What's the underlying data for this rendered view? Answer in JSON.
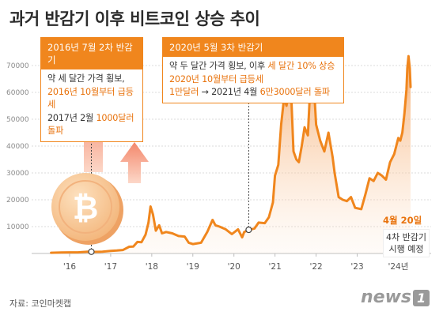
{
  "title": "과거 반감기 이후 비트코인 상승 추이",
  "source": "자료: 코인마켓캡",
  "logo": {
    "text": "news",
    "number": "1"
  },
  "annotation_2016": {
    "heading": "2016년 7월 2차 반감기",
    "line1": "약 세 달간 가격 횡보,",
    "line2": "2016년 10월부터 급등세",
    "line3_pre": "2017년 2월 ",
    "line3_hl": "1000달러 돌파"
  },
  "annotation_2020": {
    "heading": "2020년 5월 3차 반감기",
    "line1_pre": "약 두 달간 가격 횡보, 이후 ",
    "line1_hl": "세 달간 10% 상승",
    "line2": "2020년 10월부터 급등세",
    "line3_a": "1만달러",
    "line3_arrow": "→",
    "line3_b": "2021년 4월 ",
    "line3_c": "6만3000달러 돌파"
  },
  "note_2024": {
    "date": "4월 20일",
    "line1": "4차 반감기",
    "line2": "시행 예정"
  },
  "colors": {
    "line": "#f0861d",
    "accent": "#e8720c",
    "area_top": "#f6b27a",
    "grid": "#d0d0d0"
  },
  "icons": {
    "coin": "bitcoin-coin-icon",
    "arrows": "up-arrow-icon"
  },
  "chart_data": {
    "type": "area",
    "x_ticks": [
      "'16",
      "'17",
      "'18",
      "'19",
      "'20",
      "'21",
      "'22",
      "'23",
      "'24년"
    ],
    "y_ticks": [
      "10000",
      "20000",
      "30000",
      "40000",
      "50000",
      "60000",
      "70000"
    ],
    "xlim": [
      2015.5,
      2024.8
    ],
    "ylim": [
      0,
      75000
    ],
    "halving_markers": [
      {
        "date": "2016-07",
        "x": 2016.53,
        "y": 650
      },
      {
        "date": "2020-05",
        "x": 2020.36,
        "y": 8800
      }
    ],
    "series": [
      {
        "x": [
          2015.55,
          2015.8,
          2016.0,
          2016.2,
          2016.45,
          2016.6,
          2016.8,
          2017.0,
          2017.15,
          2017.3,
          2017.45,
          2017.55,
          2017.65,
          2017.75,
          2017.85,
          2017.92,
          2017.97,
          2018.03,
          2018.1,
          2018.18,
          2018.25,
          2018.35,
          2018.5,
          2018.65,
          2018.8,
          2018.9,
          2019.0,
          2019.2,
          2019.35,
          2019.48,
          2019.55,
          2019.65,
          2019.8,
          2019.95,
          2020.1,
          2020.2,
          2020.25,
          2020.36,
          2020.5,
          2020.6,
          2020.75,
          2020.85,
          2020.95,
          2021.0,
          2021.08,
          2021.15,
          2021.22,
          2021.28,
          2021.35,
          2021.4,
          2021.45,
          2021.52,
          2021.58,
          2021.65,
          2021.72,
          2021.8,
          2021.86,
          2021.93,
          2022.0,
          2022.1,
          2022.2,
          2022.3,
          2022.4,
          2022.45,
          2022.55,
          2022.65,
          2022.75,
          2022.85,
          2022.95,
          2023.1,
          2023.2,
          2023.3,
          2023.4,
          2023.5,
          2023.6,
          2023.7,
          2023.8,
          2023.9,
          2024.0,
          2024.05,
          2024.1,
          2024.15,
          2024.2,
          2024.22,
          2024.25,
          2024.28,
          2024.3
        ],
        "values": [
          250,
          350,
          400,
          420,
          650,
          600,
          650,
          950,
          1100,
          1300,
          2500,
          2600,
          4300,
          4200,
          7000,
          11500,
          17500,
          14500,
          8500,
          10500,
          7500,
          8000,
          7500,
          6500,
          6300,
          4000,
          3500,
          4000,
          8000,
          12500,
          10500,
          10000,
          9000,
          7200,
          9000,
          6000,
          8000,
          8800,
          9300,
          11500,
          11300,
          13500,
          19000,
          29000,
          33000,
          48000,
          58000,
          55000,
          63500,
          57000,
          38000,
          35000,
          34000,
          40000,
          47000,
          44000,
          63000,
          67500,
          48000,
          42000,
          38000,
          45000,
          36000,
          30000,
          21000,
          20000,
          19500,
          21000,
          17000,
          16500,
          22000,
          28000,
          27000,
          30000,
          29000,
          27500,
          34000,
          37000,
          43000,
          42000,
          45000,
          52000,
          61000,
          69000,
          73500,
          69000,
          62000
        ]
      }
    ]
  }
}
